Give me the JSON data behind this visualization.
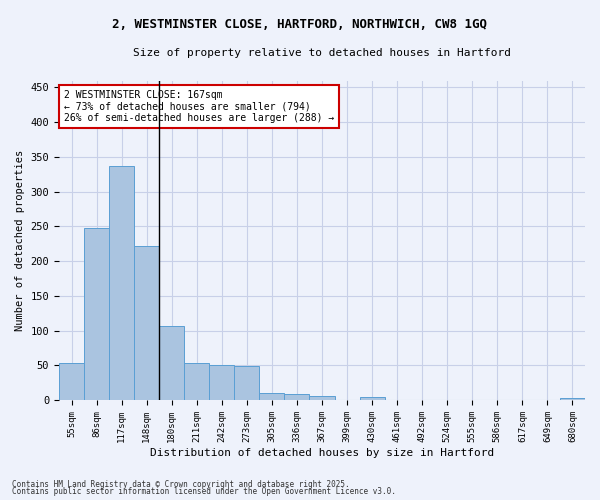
{
  "title_line1": "2, WESTMINSTER CLOSE, HARTFORD, NORTHWICH, CW8 1GQ",
  "title_line2": "Size of property relative to detached houses in Hartford",
  "xlabel": "Distribution of detached houses by size in Hartford",
  "ylabel": "Number of detached properties",
  "categories": [
    "55sqm",
    "86sqm",
    "117sqm",
    "148sqm",
    "180sqm",
    "211sqm",
    "242sqm",
    "273sqm",
    "305sqm",
    "336sqm",
    "367sqm",
    "399sqm",
    "430sqm",
    "461sqm",
    "492sqm",
    "524sqm",
    "555sqm",
    "586sqm",
    "617sqm",
    "649sqm",
    "680sqm"
  ],
  "values": [
    53,
    248,
    337,
    222,
    107,
    53,
    50,
    49,
    10,
    8,
    6,
    0,
    4,
    0,
    0,
    0,
    0,
    0,
    0,
    0,
    3
  ],
  "bar_color": "#aac4e0",
  "bar_edge_color": "#5a9fd4",
  "ylim": [
    0,
    460
  ],
  "yticks": [
    0,
    50,
    100,
    150,
    200,
    250,
    300,
    350,
    400,
    450
  ],
  "vline_position": 3.5,
  "annotation_line1": "2 WESTMINSTER CLOSE: 167sqm",
  "annotation_line2": "← 73% of detached houses are smaller (794)",
  "annotation_line3": "26% of semi-detached houses are larger (288) →",
  "annotation_box_color": "#ffffff",
  "annotation_box_edge": "#cc0000",
  "bg_color": "#eef2fb",
  "grid_color": "#c8d0e8",
  "footer_line1": "Contains HM Land Registry data © Crown copyright and database right 2025.",
  "footer_line2": "Contains public sector information licensed under the Open Government Licence v3.0."
}
